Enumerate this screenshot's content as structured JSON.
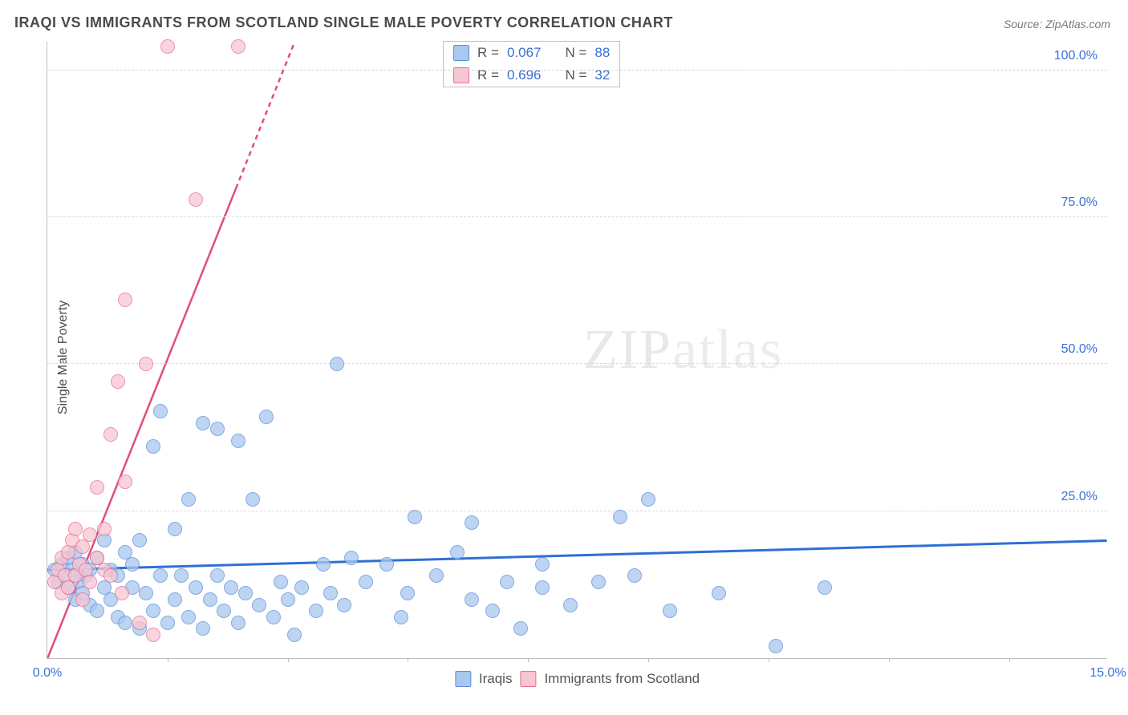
{
  "title": "IRAQI VS IMMIGRANTS FROM SCOTLAND SINGLE MALE POVERTY CORRELATION CHART",
  "source": "Source: ZipAtlas.com",
  "ylabel": "Single Male Poverty",
  "watermark": {
    "bold": "ZIP",
    "light": "atlas"
  },
  "chart": {
    "type": "scatter",
    "xlim": [
      0,
      15
    ],
    "ylim": [
      0,
      105
    ],
    "yticks": [
      {
        "v": 25,
        "label": "25.0%"
      },
      {
        "v": 50,
        "label": "50.0%"
      },
      {
        "v": 75,
        "label": "75.0%"
      },
      {
        "v": 100,
        "label": "100.0%"
      }
    ],
    "xticks": [
      {
        "v": 0,
        "label": "0.0%"
      },
      {
        "v": 15,
        "label": "15.0%"
      }
    ],
    "xtick_minor": [
      1.7,
      3.4,
      5.1,
      6.8,
      8.5,
      10.2,
      11.9,
      13.6
    ],
    "axis_color": "#bfbfbf",
    "grid_color": "#d9d9d9",
    "tick_font_color": "#3b6fd6",
    "label_font_color": "#4a4a4a",
    "marker_radius": 9,
    "marker_stroke_width": 1.5,
    "series": [
      {
        "name": "Iraqis",
        "color_fill": "#a8c8f0",
        "color_stroke": "#5b8fd6",
        "color_line": "#2e6fd6",
        "R": "0.067",
        "N": "88",
        "trend": {
          "x1": 0,
          "y1": 15,
          "x2": 15,
          "y2": 20,
          "dash": false,
          "width": 3
        },
        "points": [
          [
            0.1,
            15
          ],
          [
            0.15,
            13
          ],
          [
            0.2,
            16
          ],
          [
            0.25,
            14
          ],
          [
            0.3,
            17
          ],
          [
            0.3,
            12
          ],
          [
            0.35,
            15
          ],
          [
            0.4,
            10
          ],
          [
            0.4,
            18
          ],
          [
            0.45,
            13
          ],
          [
            0.5,
            11
          ],
          [
            0.5,
            16
          ],
          [
            0.55,
            14
          ],
          [
            0.6,
            9
          ],
          [
            0.6,
            15
          ],
          [
            0.7,
            17
          ],
          [
            0.7,
            8
          ],
          [
            0.8,
            12
          ],
          [
            0.8,
            20
          ],
          [
            0.9,
            10
          ],
          [
            0.9,
            15
          ],
          [
            1.0,
            7
          ],
          [
            1.0,
            14
          ],
          [
            1.1,
            18
          ],
          [
            1.1,
            6
          ],
          [
            1.2,
            12
          ],
          [
            1.2,
            16
          ],
          [
            1.3,
            5
          ],
          [
            1.3,
            20
          ],
          [
            1.4,
            11
          ],
          [
            1.5,
            8
          ],
          [
            1.5,
            36
          ],
          [
            1.6,
            14
          ],
          [
            1.6,
            42
          ],
          [
            1.7,
            6
          ],
          [
            1.8,
            10
          ],
          [
            1.8,
            22
          ],
          [
            1.9,
            14
          ],
          [
            2.0,
            7
          ],
          [
            2.0,
            27
          ],
          [
            2.1,
            12
          ],
          [
            2.2,
            5
          ],
          [
            2.2,
            40
          ],
          [
            2.3,
            10
          ],
          [
            2.4,
            14
          ],
          [
            2.4,
            39
          ],
          [
            2.5,
            8
          ],
          [
            2.6,
            12
          ],
          [
            2.7,
            6
          ],
          [
            2.7,
            37
          ],
          [
            2.8,
            11
          ],
          [
            2.9,
            27
          ],
          [
            3.0,
            9
          ],
          [
            3.1,
            41
          ],
          [
            3.2,
            7
          ],
          [
            3.3,
            13
          ],
          [
            3.4,
            10
          ],
          [
            3.5,
            4
          ],
          [
            3.6,
            12
          ],
          [
            3.8,
            8
          ],
          [
            3.9,
            16
          ],
          [
            4.0,
            11
          ],
          [
            4.1,
            50
          ],
          [
            4.2,
            9
          ],
          [
            4.3,
            17
          ],
          [
            4.5,
            13
          ],
          [
            4.8,
            16
          ],
          [
            5.0,
            7
          ],
          [
            5.1,
            11
          ],
          [
            5.2,
            24
          ],
          [
            5.5,
            14
          ],
          [
            5.8,
            18
          ],
          [
            6.0,
            10
          ],
          [
            6.0,
            23
          ],
          [
            6.3,
            8
          ],
          [
            6.5,
            13
          ],
          [
            6.7,
            5
          ],
          [
            7.0,
            12
          ],
          [
            7.0,
            16
          ],
          [
            7.4,
            9
          ],
          [
            7.8,
            13
          ],
          [
            8.1,
            24
          ],
          [
            8.3,
            14
          ],
          [
            8.5,
            27
          ],
          [
            8.8,
            8
          ],
          [
            9.5,
            11
          ],
          [
            10.3,
            2
          ],
          [
            11.0,
            12
          ]
        ]
      },
      {
        "name": "Immigants from Scotland",
        "label": "Immigrants from Scotland",
        "color_fill": "#f7c6d2",
        "color_stroke": "#e76e94",
        "color_line": "#e14d7b",
        "R": "0.696",
        "N": "32",
        "trend": {
          "x1": 0,
          "y1": 0,
          "x2": 3.5,
          "y2": 105,
          "dash_from_y": 80,
          "width": 2.5
        },
        "points": [
          [
            0.1,
            13
          ],
          [
            0.15,
            15
          ],
          [
            0.2,
            11
          ],
          [
            0.2,
            17
          ],
          [
            0.25,
            14
          ],
          [
            0.3,
            18
          ],
          [
            0.3,
            12
          ],
          [
            0.35,
            20
          ],
          [
            0.4,
            14
          ],
          [
            0.4,
            22
          ],
          [
            0.45,
            16
          ],
          [
            0.5,
            19
          ],
          [
            0.5,
            10
          ],
          [
            0.55,
            15
          ],
          [
            0.6,
            21
          ],
          [
            0.6,
            13
          ],
          [
            0.7,
            29
          ],
          [
            0.7,
            17
          ],
          [
            0.8,
            22
          ],
          [
            0.8,
            15
          ],
          [
            0.9,
            38
          ],
          [
            0.9,
            14
          ],
          [
            1.0,
            47
          ],
          [
            1.05,
            11
          ],
          [
            1.1,
            30
          ],
          [
            1.1,
            61
          ],
          [
            1.3,
            6
          ],
          [
            1.4,
            50
          ],
          [
            1.5,
            4
          ],
          [
            1.7,
            104
          ],
          [
            2.1,
            78
          ],
          [
            2.7,
            104
          ]
        ]
      }
    ]
  },
  "legend_top": {
    "rows": [
      {
        "sw_fill": "#a8c8f0",
        "sw_stroke": "#5b8fd6",
        "r_label": "R =",
        "r_val": "0.067",
        "n_label": "N =",
        "n_val": "88"
      },
      {
        "sw_fill": "#f7c6d2",
        "sw_stroke": "#e76e94",
        "r_label": "R =",
        "r_val": "0.696",
        "n_label": "N =",
        "n_val": "32"
      }
    ]
  },
  "legend_bottom": {
    "items": [
      {
        "sw_fill": "#a8c8f0",
        "sw_stroke": "#5b8fd6",
        "label": "Iraqis"
      },
      {
        "sw_fill": "#f7c6d2",
        "sw_stroke": "#e76e94",
        "label": "Immigrants from Scotland"
      }
    ]
  }
}
